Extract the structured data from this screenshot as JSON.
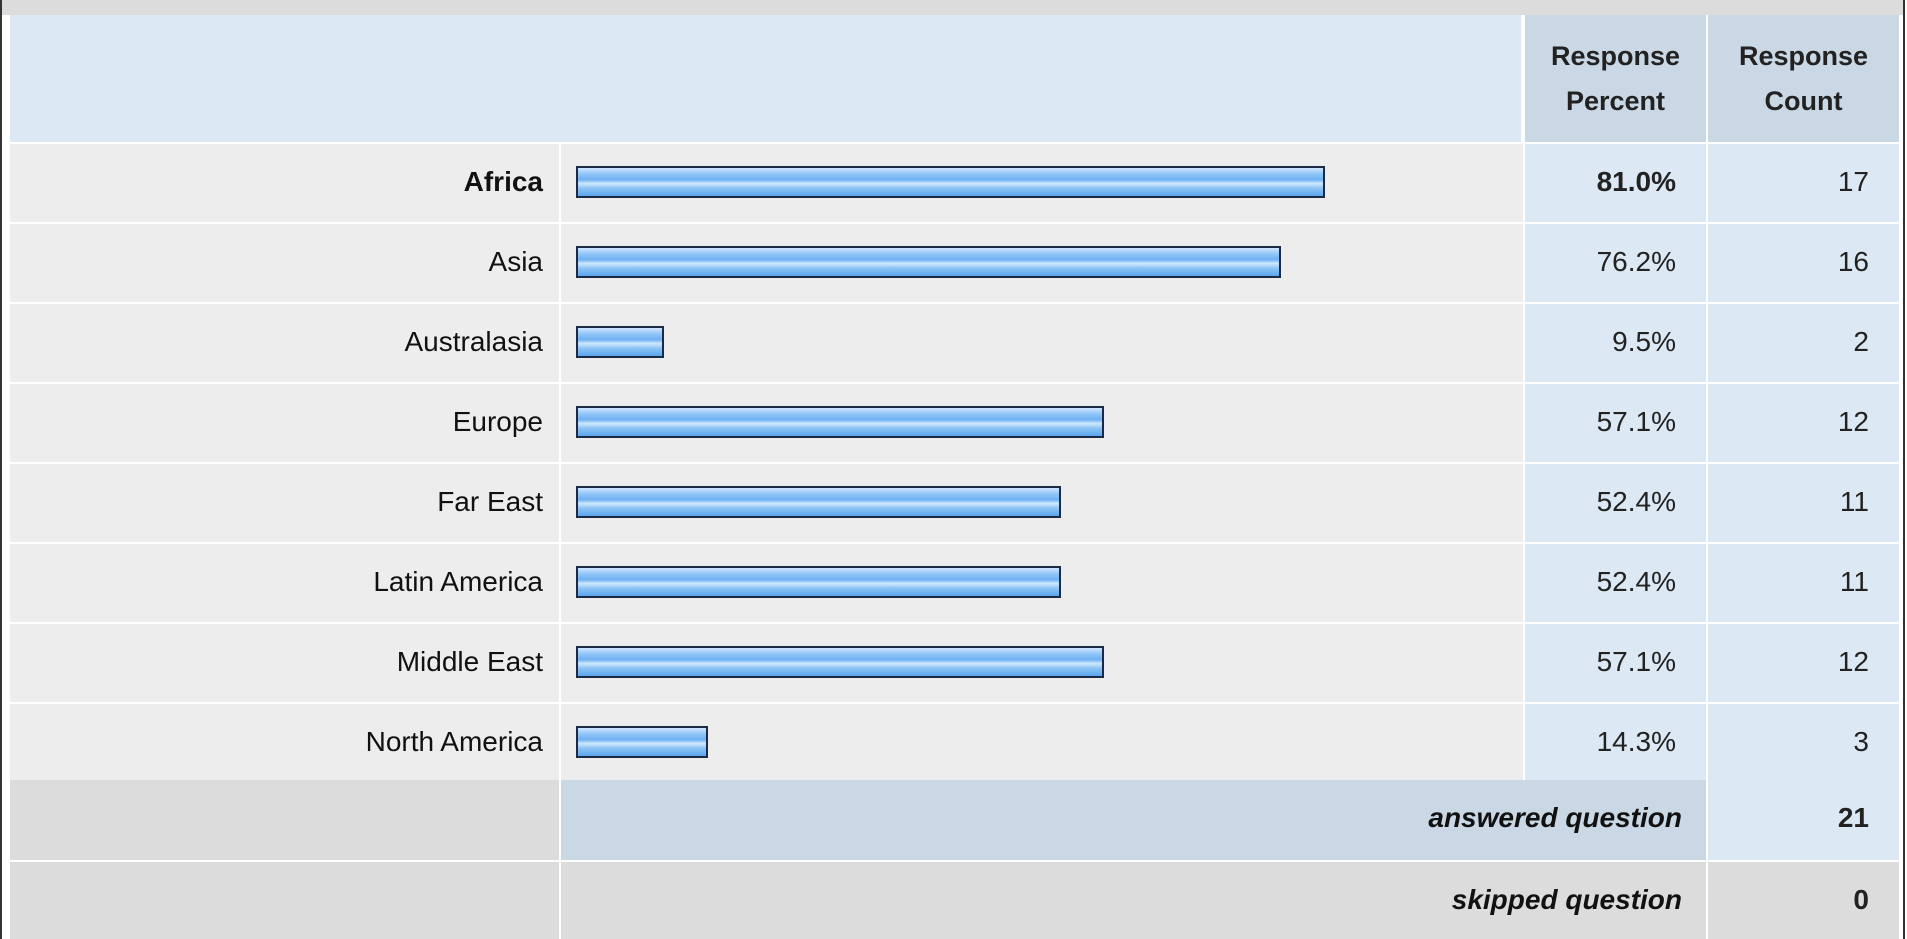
{
  "colors": {
    "header_bg": "#dce8f4",
    "header_col_bg": "#cad7e5",
    "row_bg": "#ededed",
    "bar_fill": "#7ab8f2",
    "bar_border": "#1b2a45",
    "answered_bg": "#cad7e5",
    "skipped_bg": "#dcdcdc"
  },
  "header": {
    "percent_label": "Response Percent",
    "count_label": "Response Count"
  },
  "chart_data": {
    "type": "bar",
    "orientation": "horizontal",
    "categories": [
      "Africa",
      "Asia",
      "Australasia",
      "Europe",
      "Far East",
      "Latin America",
      "Middle East",
      "North America"
    ],
    "values": [
      81.0,
      76.2,
      9.5,
      57.1,
      52.4,
      52.4,
      57.1,
      14.3
    ],
    "percent_labels": [
      "81.0%",
      "76.2%",
      "9.5%",
      "57.1%",
      "52.4%",
      "52.4%",
      "57.1%",
      "14.3%"
    ],
    "counts": [
      "17",
      "16",
      "2",
      "12",
      "11",
      "11",
      "12",
      "3"
    ],
    "highlight_index": 0,
    "xlim": [
      0,
      100
    ],
    "title": "",
    "xlabel": "",
    "ylabel": ""
  },
  "summary": {
    "answered_label": "answered question",
    "answered_value": "21",
    "skipped_label": "skipped question",
    "skipped_value": "0"
  }
}
